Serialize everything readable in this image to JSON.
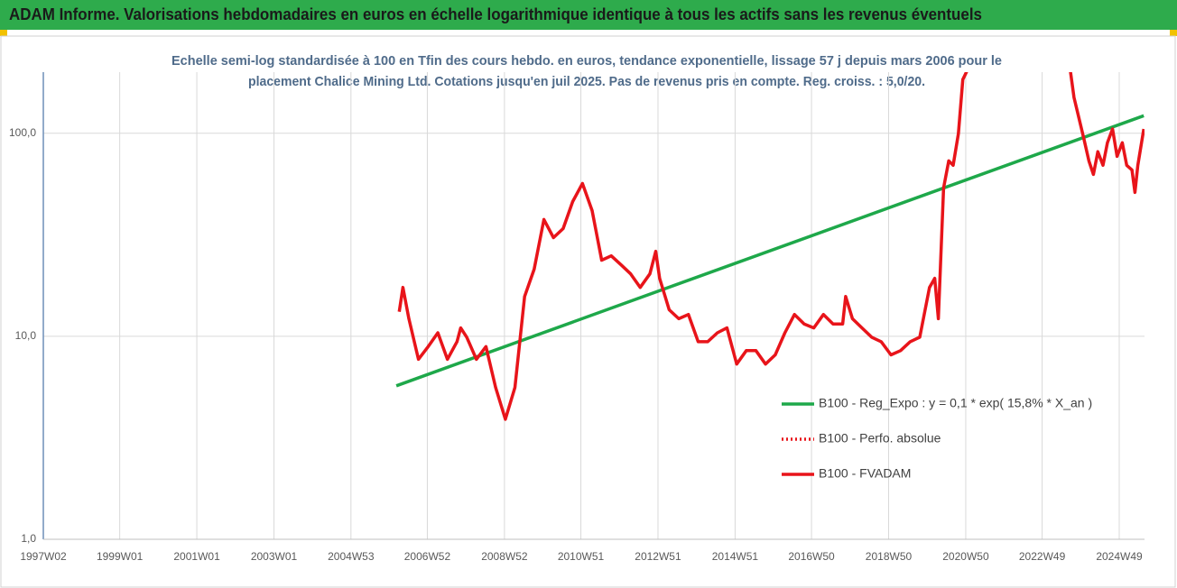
{
  "chart_data": {
    "type": "line",
    "title": "ADAM Informe. Valorisations hebdomadaires en euros en échelle logarithmique identique à tous les actifs sans les revenus éventuels",
    "subtitle": [
      "Echelle semi-log standardisée à 100 en Tfin des cours hebdo. en euros, tendance exponentielle, lissage 57 j depuis mars 2006 pour le",
      "placement Chalice Mining Ltd. Cotations jusqu'en juil 2025.  Pas de revenus pris en compte. Reg. croiss. : 5,0/20."
    ],
    "log_scale": true,
    "grid": true,
    "legend": "right",
    "xlim": [
      "1997W02",
      "2025W31"
    ],
    "xticks": [
      "1997W02",
      "1999W01",
      "2001W01",
      "2003W01",
      "2004W53",
      "2006W52",
      "2008W52",
      "2010W51",
      "2012W51",
      "2014W51",
      "2016W50",
      "2018W50",
      "2020W50",
      "2022W49",
      "2024W49"
    ],
    "ylim": [
      1,
      200
    ],
    "yticks": [
      {
        "value": 1,
        "label": "1,0"
      },
      {
        "value": 10,
        "label": "10,0"
      },
      {
        "value": 100,
        "label": "100,0"
      }
    ],
    "series": [
      {
        "name": "B100 - Reg_Expo : y = 0,1 * exp( 15,8% *  X_an )",
        "color": "#1ea84a",
        "style": "solid",
        "x": [
          "2006W10",
          "2025W30"
        ],
        "values": [
          5.7,
          122
        ]
      },
      {
        "name": "B100 - Perfo. absolue",
        "color": "#e8141a",
        "style": "dotted",
        "x": [],
        "values": []
      },
      {
        "name": "B100 - FVADAM",
        "color": "#e8141a",
        "style": "solid",
        "x": [
          "2006W14",
          "2006W19",
          "2006W27",
          "2006W40",
          "2007W01",
          "2007W14",
          "2007W27",
          "2007W40",
          "2007W45",
          "2008W01",
          "2008W14",
          "2008W27",
          "2008W40",
          "2009W01",
          "2009W14",
          "2009W27",
          "2009W40",
          "2010W01",
          "2010W14",
          "2010W27",
          "2010W40",
          "2011W01",
          "2011W14",
          "2011W27",
          "2011W40",
          "2012W01",
          "2012W14",
          "2012W27",
          "2012W40",
          "2012W48",
          "2013W01",
          "2013W14",
          "2013W27",
          "2013W40",
          "2014W01",
          "2014W14",
          "2014W27",
          "2014W40",
          "2015W01",
          "2015W14",
          "2015W27",
          "2015W40",
          "2016W01",
          "2016W14",
          "2016W27",
          "2016W40",
          "2017W01",
          "2017W14",
          "2017W27",
          "2017W40",
          "2017W44",
          "2018W01",
          "2018W14",
          "2018W27",
          "2018W40",
          "2019W01",
          "2019W14",
          "2019W27",
          "2019W40",
          "2020W01",
          "2020W08",
          "2020W13",
          "2020W20",
          "2020W27",
          "2020W33",
          "2020W40",
          "2020W46",
          "2020W52",
          "2022W14",
          "2023W35",
          "2023W40",
          "2024W01",
          "2024W08",
          "2024W14",
          "2024W20",
          "2024W27",
          "2024W33",
          "2024W40",
          "2024W46",
          "2025W01",
          "2025W07",
          "2025W14",
          "2025W18",
          "2025W22",
          "2025W27",
          "2025W30"
        ],
        "values": [
          13.2,
          17.4,
          12.2,
          7.7,
          8.9,
          10.4,
          7.7,
          9.4,
          11.0,
          9.9,
          7.7,
          8.9,
          5.6,
          3.9,
          5.6,
          15.7,
          21.4,
          37.6,
          30.6,
          33.9,
          46.1,
          56.6,
          41.6,
          23.7,
          24.9,
          22.5,
          20.3,
          17.4,
          20.3,
          26.2,
          19.3,
          13.5,
          12.2,
          12.8,
          9.4,
          9.4,
          10.4,
          11.0,
          7.3,
          8.5,
          8.5,
          7.3,
          8.1,
          10.4,
          12.8,
          11.5,
          11.0,
          12.8,
          11.5,
          11.5,
          15.7,
          12.2,
          11.0,
          9.9,
          9.4,
          8.1,
          8.5,
          9.4,
          9.9,
          17.4,
          19.3,
          12.2,
          53.8,
          73.1,
          69.5,
          99.5,
          184,
          204,
          null,
          204,
          150,
          94.5,
          73.1,
          62.7,
          81.1,
          69.5,
          89.8,
          105,
          76.9,
          89.8,
          69.5,
          66.0,
          51.1,
          69.5,
          89.8,
          105
        ]
      }
    ]
  }
}
